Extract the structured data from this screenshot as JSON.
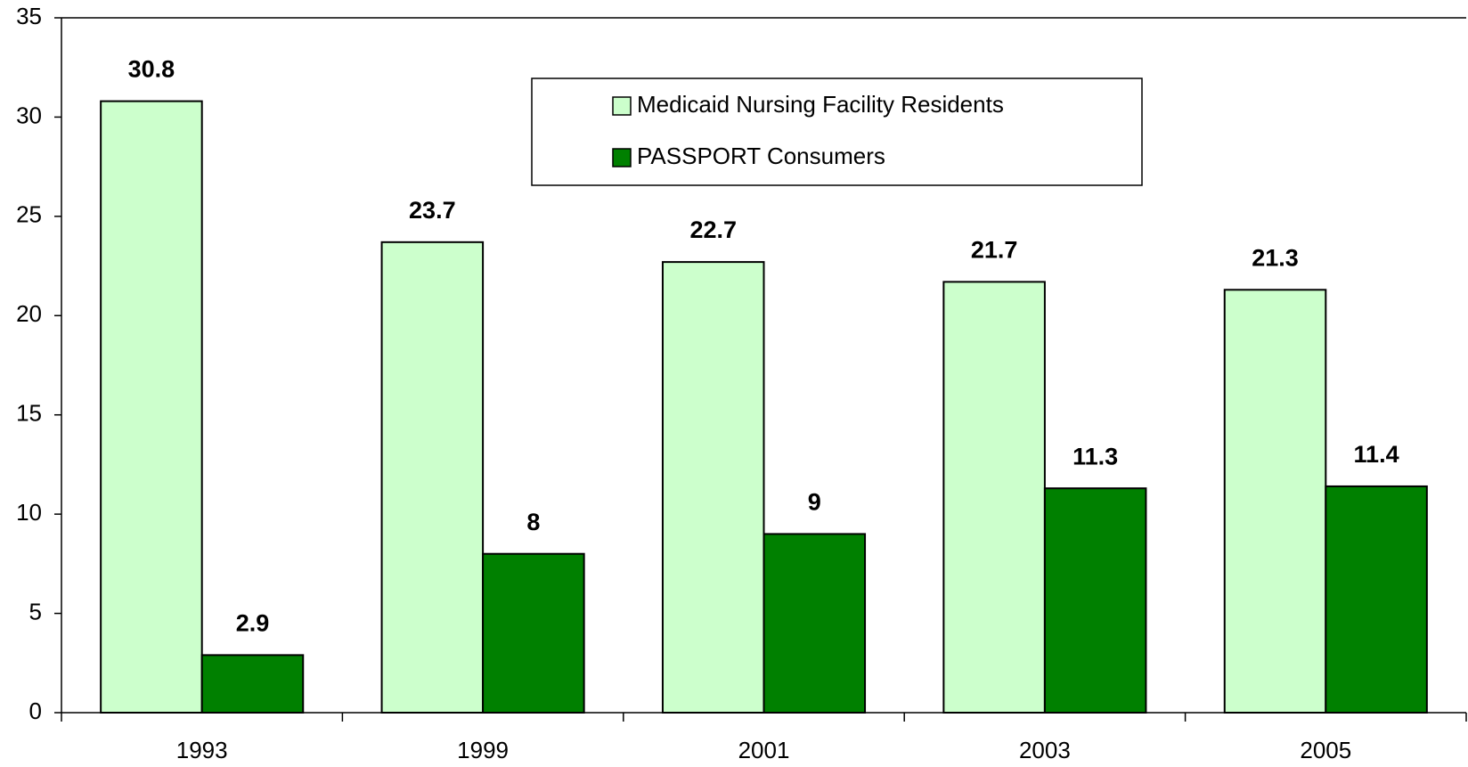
{
  "chart_data": {
    "type": "bar",
    "categories": [
      "1993",
      "1999",
      "2001",
      "2003",
      "2005"
    ],
    "series": [
      {
        "name": "Medicaid Nursing Facility Residents",
        "color": "#ccffcc",
        "values": [
          30.8,
          23.7,
          22.7,
          21.7,
          21.3
        ]
      },
      {
        "name": "PASSPORT Consumers",
        "color": "#008000",
        "values": [
          2.9,
          8,
          9,
          11.3,
          11.4
        ]
      }
    ],
    "ylim": [
      0,
      35
    ],
    "yticks": [
      0,
      5,
      10,
      15,
      20,
      25,
      30,
      35
    ],
    "grid": false,
    "legend": "top"
  }
}
